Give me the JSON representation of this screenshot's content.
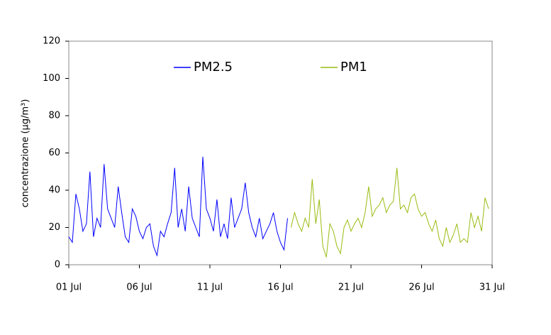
{
  "chart_data": {
    "type": "line",
    "y_label": "concentrazione (µg/m³)",
    "xlim": [
      1,
      31
    ],
    "ylim": [
      0,
      120
    ],
    "xticks": [
      {
        "value": 1,
        "label": "01 Jul"
      },
      {
        "value": 6,
        "label": "06 Jul"
      },
      {
        "value": 11,
        "label": "11 Jul"
      },
      {
        "value": 16,
        "label": "16 Jul"
      },
      {
        "value": 21,
        "label": "21 Jul"
      },
      {
        "value": 26,
        "label": "26 Jul"
      },
      {
        "value": 31,
        "label": "31 Jul"
      }
    ],
    "yticks": [
      0,
      20,
      40,
      60,
      80,
      100,
      120
    ],
    "legend": "top",
    "series": [
      {
        "name": "PM2.5",
        "color": "#0000ff",
        "x": [
          1,
          1.25,
          1.5,
          1.75,
          2,
          2.25,
          2.5,
          2.75,
          3,
          3.25,
          3.5,
          3.75,
          4,
          4.25,
          4.5,
          4.75,
          5,
          5.25,
          5.5,
          5.75,
          6,
          6.25,
          6.5,
          6.75,
          7,
          7.25,
          7.5,
          7.75,
          8,
          8.25,
          8.5,
          8.75,
          9,
          9.25,
          9.5,
          9.75,
          10,
          10.25,
          10.5,
          10.75,
          11,
          11.25,
          11.5,
          11.75,
          12,
          12.25,
          12.5,
          12.75,
          13,
          13.25,
          13.5,
          13.75,
          14,
          14.25,
          14.5,
          14.75,
          15,
          15.25,
          15.5,
          15.75,
          16,
          16.25,
          16.5
        ],
        "values": [
          15,
          12,
          38,
          30,
          18,
          22,
          50,
          15,
          25,
          20,
          54,
          30,
          25,
          20,
          42,
          28,
          15,
          12,
          30,
          26,
          18,
          14,
          20,
          22,
          10,
          5,
          18,
          15,
          22,
          28,
          52,
          20,
          30,
          18,
          42,
          25,
          20,
          15,
          58,
          30,
          25,
          18,
          35,
          15,
          22,
          14,
          36,
          20,
          25,
          30,
          44,
          28,
          20,
          15,
          25,
          14,
          18,
          22,
          28,
          18,
          12,
          8,
          25
        ]
      },
      {
        "name": "PM1",
        "color": "#99bb11",
        "x": [
          16.75,
          17,
          17.25,
          17.5,
          17.75,
          18,
          18.25,
          18.5,
          18.75,
          19,
          19.25,
          19.5,
          19.75,
          20,
          20.25,
          20.5,
          20.75,
          21,
          21.25,
          21.5,
          21.75,
          22,
          22.25,
          22.5,
          22.75,
          23,
          23.25,
          23.5,
          23.75,
          24,
          24.25,
          24.5,
          24.75,
          25,
          25.25,
          25.5,
          25.75,
          26,
          26.25,
          26.5,
          26.75,
          27,
          27.25,
          27.5,
          27.75,
          28,
          28.25,
          28.5,
          28.75,
          29,
          29.25,
          29.5,
          29.75,
          30,
          30.25,
          30.5,
          30.75
        ],
        "values": [
          20,
          28,
          22,
          18,
          25,
          20,
          46,
          22,
          35,
          10,
          4,
          22,
          18,
          10,
          6,
          20,
          24,
          18,
          22,
          25,
          20,
          28,
          42,
          26,
          30,
          32,
          36,
          28,
          32,
          34,
          52,
          30,
          32,
          28,
          36,
          38,
          30,
          26,
          28,
          22,
          18,
          24,
          14,
          10,
          20,
          12,
          16,
          22,
          12,
          14,
          12,
          28,
          20,
          26,
          18,
          36,
          30
        ]
      }
    ]
  }
}
